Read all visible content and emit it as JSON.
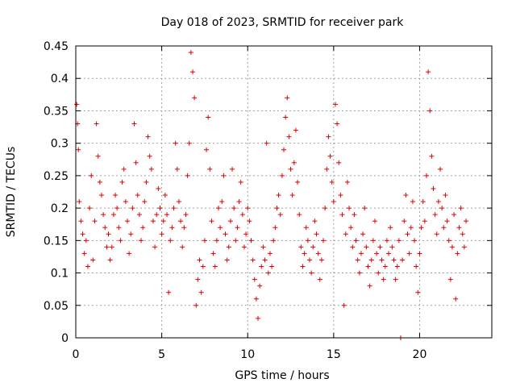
{
  "chart_data": {
    "type": "scatter",
    "title": "Day 018 of 2023, SRMTID for receiver park",
    "xlabel": "GPS time / hours",
    "ylabel": "SRMTID / TECUs",
    "xlim": [
      0,
      24.2
    ],
    "ylim": [
      0,
      0.45
    ],
    "xticks": [
      0,
      5,
      10,
      15,
      20
    ],
    "xtick_labels": [
      "0",
      "5",
      "10",
      "15",
      "20"
    ],
    "yticks": [
      0,
      0.05,
      0.1,
      0.15,
      0.2,
      0.25,
      0.3,
      0.35,
      0.4,
      0.45
    ],
    "ytick_labels": [
      "0",
      "0.05",
      "0.1",
      "0.15",
      "0.2",
      "0.25",
      "0.3",
      "0.35",
      "0.4",
      "0.45"
    ],
    "grid": true,
    "marker": "+",
    "color": "#e00000",
    "series": [
      {
        "name": "SRMTID",
        "points": [
          [
            0.05,
            0.36
          ],
          [
            0.1,
            0.33
          ],
          [
            0.15,
            0.29
          ],
          [
            0.2,
            0.21
          ],
          [
            0.3,
            0.18
          ],
          [
            0.4,
            0.16
          ],
          [
            0.5,
            0.13
          ],
          [
            0.6,
            0.15
          ],
          [
            0.7,
            0.11
          ],
          [
            0.8,
            0.2
          ],
          [
            0.9,
            0.25
          ],
          [
            1.0,
            0.12
          ],
          [
            1.1,
            0.18
          ],
          [
            1.2,
            0.33
          ],
          [
            1.3,
            0.28
          ],
          [
            1.4,
            0.24
          ],
          [
            1.5,
            0.22
          ],
          [
            1.6,
            0.19
          ],
          [
            1.7,
            0.17
          ],
          [
            1.8,
            0.14
          ],
          [
            1.9,
            0.16
          ],
          [
            2.0,
            0.12
          ],
          [
            2.1,
            0.14
          ],
          [
            2.2,
            0.19
          ],
          [
            2.3,
            0.22
          ],
          [
            2.4,
            0.2
          ],
          [
            2.5,
            0.17
          ],
          [
            2.6,
            0.15
          ],
          [
            2.7,
            0.24
          ],
          [
            2.8,
            0.26
          ],
          [
            2.9,
            0.21
          ],
          [
            3.0,
            0.18
          ],
          [
            3.1,
            0.13
          ],
          [
            3.2,
            0.16
          ],
          [
            3.3,
            0.2
          ],
          [
            3.4,
            0.33
          ],
          [
            3.5,
            0.27
          ],
          [
            3.6,
            0.22
          ],
          [
            3.7,
            0.19
          ],
          [
            3.8,
            0.15
          ],
          [
            3.9,
            0.17
          ],
          [
            4.0,
            0.21
          ],
          [
            4.1,
            0.24
          ],
          [
            4.2,
            0.31
          ],
          [
            4.3,
            0.28
          ],
          [
            4.4,
            0.26
          ],
          [
            4.5,
            0.18
          ],
          [
            4.6,
            0.14
          ],
          [
            4.7,
            0.19
          ],
          [
            4.8,
            0.23
          ],
          [
            4.9,
            0.2
          ],
          [
            5.0,
            0.16
          ],
          [
            5.1,
            0.18
          ],
          [
            5.2,
            0.22
          ],
          [
            5.3,
            0.19
          ],
          [
            5.4,
            0.07
          ],
          [
            5.5,
            0.15
          ],
          [
            5.6,
            0.17
          ],
          [
            5.7,
            0.2
          ],
          [
            5.8,
            0.3
          ],
          [
            5.9,
            0.26
          ],
          [
            6.0,
            0.21
          ],
          [
            6.1,
            0.18
          ],
          [
            6.2,
            0.14
          ],
          [
            6.3,
            0.17
          ],
          [
            6.4,
            0.19
          ],
          [
            6.5,
            0.25
          ],
          [
            6.6,
            0.3
          ],
          [
            6.7,
            0.44
          ],
          [
            6.8,
            0.41
          ],
          [
            6.9,
            0.37
          ],
          [
            7.0,
            0.05
          ],
          [
            7.1,
            0.09
          ],
          [
            7.2,
            0.12
          ],
          [
            7.3,
            0.07
          ],
          [
            7.4,
            0.11
          ],
          [
            7.5,
            0.15
          ],
          [
            7.6,
            0.29
          ],
          [
            7.7,
            0.34
          ],
          [
            7.8,
            0.26
          ],
          [
            7.9,
            0.18
          ],
          [
            8.0,
            0.13
          ],
          [
            8.1,
            0.11
          ],
          [
            8.2,
            0.15
          ],
          [
            8.3,
            0.2
          ],
          [
            8.4,
            0.17
          ],
          [
            8.5,
            0.21
          ],
          [
            8.6,
            0.25
          ],
          [
            8.7,
            0.16
          ],
          [
            8.8,
            0.12
          ],
          [
            8.9,
            0.14
          ],
          [
            9.0,
            0.18
          ],
          [
            9.1,
            0.26
          ],
          [
            9.2,
            0.2
          ],
          [
            9.3,
            0.15
          ],
          [
            9.4,
            0.17
          ],
          [
            9.5,
            0.21
          ],
          [
            9.6,
            0.24
          ],
          [
            9.7,
            0.19
          ],
          [
            9.8,
            0.14
          ],
          [
            9.9,
            0.16
          ],
          [
            10.0,
            0.2
          ],
          [
            10.1,
            0.18
          ],
          [
            10.2,
            0.15
          ],
          [
            10.3,
            0.12
          ],
          [
            10.4,
            0.09
          ],
          [
            10.5,
            0.06
          ],
          [
            10.6,
            0.03
          ],
          [
            10.7,
            0.08
          ],
          [
            10.8,
            0.11
          ],
          [
            10.9,
            0.14
          ],
          [
            11.0,
            0.12
          ],
          [
            11.1,
            0.3
          ],
          [
            11.2,
            0.1
          ],
          [
            11.3,
            0.13
          ],
          [
            11.4,
            0.11
          ],
          [
            11.5,
            0.15
          ],
          [
            11.6,
            0.17
          ],
          [
            11.7,
            0.2
          ],
          [
            11.8,
            0.22
          ],
          [
            11.9,
            0.19
          ],
          [
            12.0,
            0.25
          ],
          [
            12.1,
            0.29
          ],
          [
            12.2,
            0.34
          ],
          [
            12.3,
            0.37
          ],
          [
            12.4,
            0.31
          ],
          [
            12.5,
            0.26
          ],
          [
            12.6,
            0.22
          ],
          [
            12.7,
            0.27
          ],
          [
            12.8,
            0.32
          ],
          [
            12.9,
            0.24
          ],
          [
            13.0,
            0.19
          ],
          [
            13.1,
            0.14
          ],
          [
            13.2,
            0.11
          ],
          [
            13.3,
            0.13
          ],
          [
            13.4,
            0.17
          ],
          [
            13.5,
            0.15
          ],
          [
            13.6,
            0.12
          ],
          [
            13.7,
            0.1
          ],
          [
            13.8,
            0.14
          ],
          [
            13.9,
            0.18
          ],
          [
            14.0,
            0.16
          ],
          [
            14.1,
            0.13
          ],
          [
            14.2,
            0.09
          ],
          [
            14.3,
            0.12
          ],
          [
            14.4,
            0.15
          ],
          [
            14.5,
            0.2
          ],
          [
            14.6,
            0.26
          ],
          [
            14.7,
            0.31
          ],
          [
            14.8,
            0.28
          ],
          [
            14.9,
            0.24
          ],
          [
            15.0,
            0.21
          ],
          [
            15.1,
            0.36
          ],
          [
            15.2,
            0.33
          ],
          [
            15.3,
            0.27
          ],
          [
            15.4,
            0.22
          ],
          [
            15.5,
            0.19
          ],
          [
            15.6,
            0.05
          ],
          [
            15.7,
            0.16
          ],
          [
            15.8,
            0.24
          ],
          [
            15.9,
            0.2
          ],
          [
            16.0,
            0.17
          ],
          [
            16.1,
            0.14
          ],
          [
            16.2,
            0.19
          ],
          [
            16.3,
            0.15
          ],
          [
            16.4,
            0.12
          ],
          [
            16.5,
            0.1
          ],
          [
            16.6,
            0.13
          ],
          [
            16.7,
            0.16
          ],
          [
            16.8,
            0.2
          ],
          [
            16.9,
            0.14
          ],
          [
            17.0,
            0.11
          ],
          [
            17.1,
            0.08
          ],
          [
            17.2,
            0.12
          ],
          [
            17.3,
            0.15
          ],
          [
            17.4,
            0.18
          ],
          [
            17.5,
            0.13
          ],
          [
            17.6,
            0.1
          ],
          [
            17.7,
            0.14
          ],
          [
            17.8,
            0.12
          ],
          [
            17.9,
            0.09
          ],
          [
            18.0,
            0.11
          ],
          [
            18.1,
            0.15
          ],
          [
            18.2,
            0.13
          ],
          [
            18.3,
            0.17
          ],
          [
            18.4,
            0.14
          ],
          [
            18.5,
            0.12
          ],
          [
            18.6,
            0.09
          ],
          [
            18.7,
            0.11
          ],
          [
            18.8,
            0.15
          ],
          [
            18.9,
            0.0
          ],
          [
            19.0,
            0.12
          ],
          [
            19.1,
            0.18
          ],
          [
            19.2,
            0.22
          ],
          [
            19.3,
            0.16
          ],
          [
            19.4,
            0.13
          ],
          [
            19.5,
            0.17
          ],
          [
            19.6,
            0.21
          ],
          [
            19.7,
            0.15
          ],
          [
            19.8,
            0.11
          ],
          [
            19.9,
            0.07
          ],
          [
            20.0,
            0.13
          ],
          [
            20.1,
            0.17
          ],
          [
            20.2,
            0.21
          ],
          [
            20.3,
            0.18
          ],
          [
            20.4,
            0.25
          ],
          [
            20.5,
            0.41
          ],
          [
            20.6,
            0.35
          ],
          [
            20.7,
            0.28
          ],
          [
            20.8,
            0.23
          ],
          [
            20.9,
            0.19
          ],
          [
            21.0,
            0.16
          ],
          [
            21.1,
            0.21
          ],
          [
            21.2,
            0.26
          ],
          [
            21.3,
            0.2
          ],
          [
            21.4,
            0.17
          ],
          [
            21.5,
            0.22
          ],
          [
            21.6,
            0.18
          ],
          [
            21.7,
            0.15
          ],
          [
            21.8,
            0.09
          ],
          [
            21.9,
            0.14
          ],
          [
            22.0,
            0.19
          ],
          [
            22.1,
            0.06
          ],
          [
            22.2,
            0.13
          ],
          [
            22.3,
            0.17
          ],
          [
            22.4,
            0.2
          ],
          [
            22.5,
            0.16
          ],
          [
            22.6,
            0.14
          ],
          [
            22.7,
            0.18
          ]
        ]
      }
    ]
  }
}
